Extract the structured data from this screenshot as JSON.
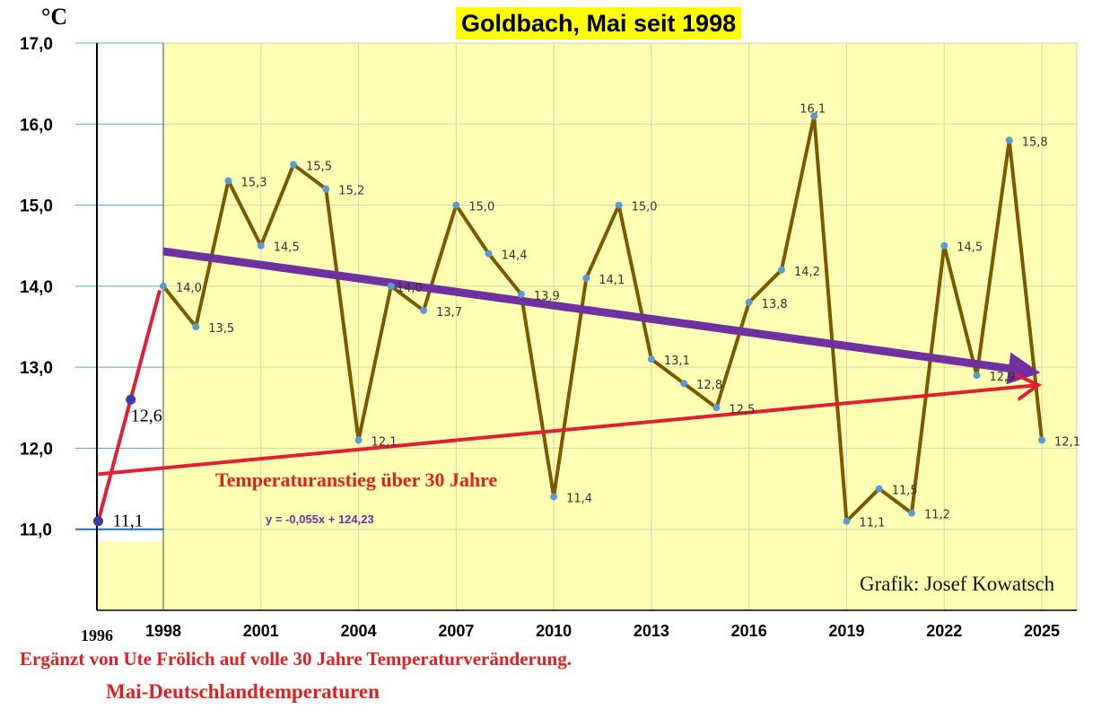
{
  "title": "Goldbach, Mai seit 1998",
  "unit_label": "°C",
  "credit": "Grafik: Josef Kowatsch",
  "annotation": "Temperaturanstieg über 30 Jahre",
  "trend_equation": "y = -0,055x + 124,23",
  "footnote_1": "Ergänzt von Ute Frölich auf volle 30 Jahre Temperaturveränderung.",
  "footnote_2": "Mai-Deutschlandtemperaturen",
  "colors": {
    "plot_background": "#ffffb3",
    "main_line": "#7a5a00",
    "markers": "#5b9bd5",
    "trend_purple": "#7030a0",
    "trend_red": "#e02030",
    "extension_points": "#3b3bb0",
    "gridline": "#5aa0c8"
  },
  "chart_data": {
    "type": "line",
    "title": "Goldbach, Mai seit 1998",
    "ylabel": "°C",
    "xlabel": "",
    "ylim": [
      10,
      17
    ],
    "y_ticks": [
      "17,0",
      "16,0",
      "15,0",
      "14,0",
      "13,0",
      "12,0",
      "11,0"
    ],
    "x_ticks": [
      "1996",
      "1998",
      "2001",
      "2004",
      "2007",
      "2010",
      "2013",
      "2016",
      "2019",
      "2022",
      "2025"
    ],
    "grid": "horizontal",
    "series": [
      {
        "x": [
          1998,
          1999,
          2000,
          2001,
          2002,
          2003,
          2004,
          2005,
          2006,
          2007,
          2008,
          2009,
          2010,
          2011,
          2012,
          2013,
          2014,
          2015,
          2016,
          2017,
          2018,
          2019,
          2020,
          2021,
          2022,
          2023,
          2024,
          2025
        ],
        "values": [
          14.0,
          13.5,
          15.3,
          14.5,
          15.5,
          15.2,
          12.1,
          14.0,
          13.7,
          15.0,
          14.4,
          13.9,
          11.4,
          14.1,
          15.0,
          13.1,
          12.8,
          12.5,
          13.8,
          14.2,
          16.1,
          11.1,
          11.5,
          11.2,
          14.5,
          12.9,
          15.8,
          12.1
        ],
        "labels": [
          "14,0",
          "13,5",
          "15,3",
          "14,5",
          "15,5",
          "15,2",
          "12,1",
          "14,0",
          "13,7",
          "15,0",
          "14,4",
          "13,9",
          "11,4",
          "14,1",
          "15,0",
          "13,1",
          "12,8",
          "12,5",
          "13,8",
          "14,2",
          "16,1",
          "11,1",
          "11,5",
          "11,2",
          "14,5",
          "12,9",
          "15,8",
          "12,1"
        ]
      },
      {
        "x": [
          1996,
          1997
        ],
        "values": [
          11.1,
          12.6
        ],
        "labels": [
          "11,1",
          "12,6"
        ]
      }
    ],
    "trend_lines": [
      {
        "x": [
          1998,
          2025
        ],
        "values": [
          14.43,
          12.95
        ]
      },
      {
        "x": [
          1996,
          2025
        ],
        "values": [
          11.68,
          12.78
        ]
      },
      {
        "x": [
          1996,
          1998
        ],
        "values": [
          11.1,
          13.95
        ]
      }
    ]
  }
}
